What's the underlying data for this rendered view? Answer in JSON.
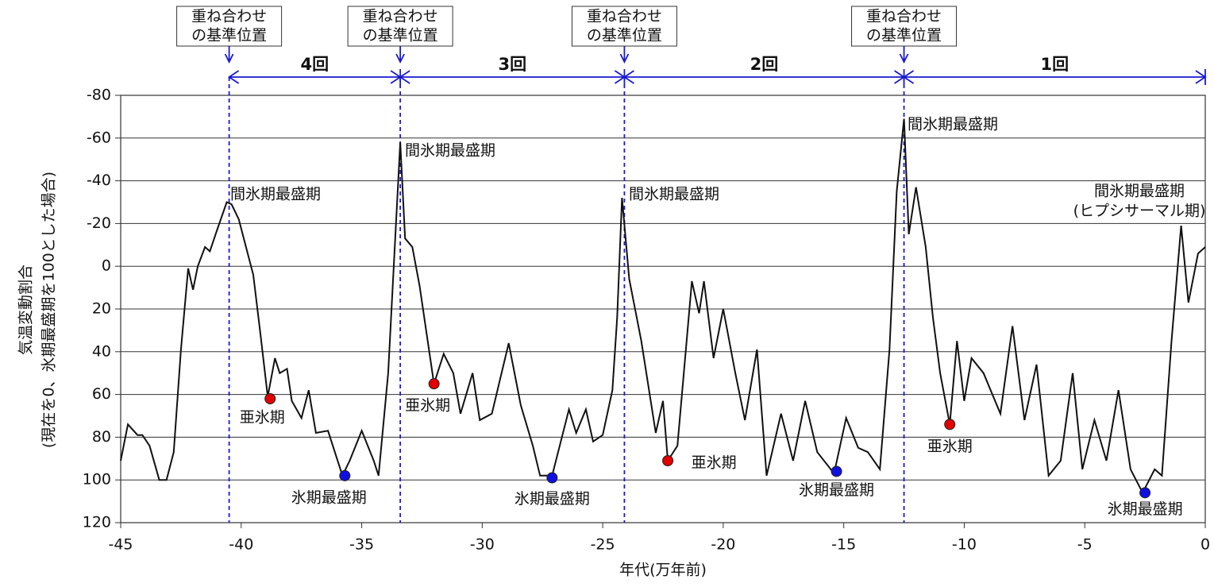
{
  "chart_data": {
    "type": "line",
    "xlabel": "年代(万年前)",
    "ylabel": [
      "気温変動割合",
      "(現在を0、氷期最盛期を100とした場合)"
    ],
    "xlim": [
      -45,
      0
    ],
    "ylim": [
      -80,
      120
    ],
    "y_inverted": true,
    "xticks": [
      -45,
      -40,
      -35,
      -30,
      -25,
      -20,
      -15,
      -10,
      -5,
      0
    ],
    "yticks": [
      -80,
      -60,
      -40,
      -20,
      0,
      20,
      40,
      60,
      80,
      100,
      120
    ],
    "grid": true,
    "x": [
      -45,
      -44.7,
      -44.3,
      -44.1,
      -43.8,
      -43.4,
      -43.1,
      -42.8,
      -42.5,
      -42.2,
      -42.0,
      -41.8,
      -41.5,
      -41.3,
      -41.0,
      -40.6,
      -40.4,
      -40.1,
      -39.5,
      -39.2,
      -38.9,
      -38.6,
      -38.4,
      -38.1,
      -37.9,
      -37.5,
      -37.2,
      -36.9,
      -36.4,
      -35.8,
      -35.5,
      -35.0,
      -34.5,
      -34.3,
      -33.9,
      -33.4,
      -33.2,
      -32.9,
      -32.6,
      -32.0,
      -31.6,
      -31.2,
      -30.9,
      -30.4,
      -30.1,
      -29.6,
      -28.9,
      -28.4,
      -27.9,
      -27.6,
      -27.1,
      -26.4,
      -26.1,
      -25.7,
      -25.4,
      -25.0,
      -24.6,
      -24.4,
      -24.2,
      -23.9,
      -23.4,
      -22.8,
      -22.5,
      -22.3,
      -21.9,
      -21.3,
      -21.0,
      -20.8,
      -20.4,
      -20.0,
      -19.5,
      -19.1,
      -18.6,
      -18.2,
      -17.6,
      -17.1,
      -16.6,
      -16.1,
      -15.4,
      -14.9,
      -14.4,
      -14.0,
      -13.5,
      -13.1,
      -12.8,
      -12.5,
      -12.3,
      -12.0,
      -11.6,
      -11.3,
      -11.0,
      -10.6,
      -10.3,
      -10.0,
      -9.7,
      -9.2,
      -8.5,
      -8.0,
      -7.5,
      -7.0,
      -6.5,
      -6.0,
      -5.5,
      -5.1,
      -4.6,
      -4.1,
      -3.6,
      -3.1,
      -2.6,
      -2.1,
      -1.8,
      -1.4,
      -1.0,
      -0.7,
      -0.3,
      0
    ],
    "series": [
      {
        "color": "#111111",
        "values": [
          91,
          74,
          79,
          79,
          84,
          100,
          100,
          87,
          39,
          1,
          11,
          0,
          -9,
          -7,
          -17,
          -30,
          -29,
          -22,
          4,
          32,
          61,
          43,
          50,
          48,
          63,
          71,
          58,
          78,
          77,
          98,
          91,
          77,
          91,
          98,
          50,
          -58,
          -13,
          -9,
          9,
          55,
          41,
          50,
          69,
          50,
          72,
          69,
          36,
          65,
          84,
          98,
          98,
          67,
          78,
          67,
          82,
          79,
          58,
          24,
          -32,
          6,
          35,
          78,
          63,
          91,
          84,
          7,
          22,
          7,
          43,
          20,
          50,
          72,
          39,
          98,
          69,
          91,
          63,
          87,
          97,
          71,
          85,
          87,
          95,
          39,
          -35,
          -69,
          -15,
          -37,
          -9,
          24,
          50,
          74,
          35,
          63,
          43,
          50,
          69,
          28,
          72,
          46,
          98,
          91,
          50,
          95,
          72,
          91,
          58,
          95,
          106,
          95,
          98,
          35,
          -19,
          17,
          -6,
          -9
        ]
      }
    ],
    "points": [
      {
        "x": -38.8,
        "y": 62,
        "color": "#e00000",
        "label": "亜氷期"
      },
      {
        "x": -32.0,
        "y": 55,
        "color": "#e00000",
        "label": "亜氷期"
      },
      {
        "x": -22.3,
        "y": 91,
        "color": "#e00000",
        "label": "亜氷期"
      },
      {
        "x": -10.6,
        "y": 74,
        "color": "#e00000",
        "label": "亜氷期"
      },
      {
        "x": -35.7,
        "y": 98,
        "color": "#1010e0",
        "label": "氷期最盛期"
      },
      {
        "x": -27.1,
        "y": 99,
        "color": "#1010e0",
        "label": "氷期最盛期"
      },
      {
        "x": -15.3,
        "y": 96,
        "color": "#1010e0",
        "label": "氷期最盛期"
      },
      {
        "x": -2.5,
        "y": 106,
        "color": "#1010e0",
        "label": "氷期最盛期"
      }
    ],
    "peak_labels": [
      [
        "間氷期最盛期"
      ],
      [
        "間氷期最盛期"
      ],
      [
        "間氷期最盛期"
      ],
      [
        "間氷期最盛期"
      ],
      [
        "間氷期最盛期",
        "(ヒプシサーマル期)"
      ]
    ],
    "reference_lines": [
      {
        "x": -40.5,
        "label": [
          "重ね合わせ",
          "の基準位置"
        ]
      },
      {
        "x": -33.4,
        "label": [
          "重ね合わせ",
          "の基準位置"
        ]
      },
      {
        "x": -24.1,
        "label": [
          "重ね合わせ",
          "の基準位置"
        ]
      },
      {
        "x": -12.5,
        "label": [
          "重ね合わせ",
          "の基準位置"
        ]
      }
    ],
    "intervals": [
      {
        "from": -40.5,
        "to": -33.4,
        "label": "4回"
      },
      {
        "from": -33.4,
        "to": -24.1,
        "label": "3回"
      },
      {
        "from": -24.1,
        "to": -12.5,
        "label": "2回"
      },
      {
        "from": -12.5,
        "to": 0,
        "label": "1回"
      }
    ]
  }
}
